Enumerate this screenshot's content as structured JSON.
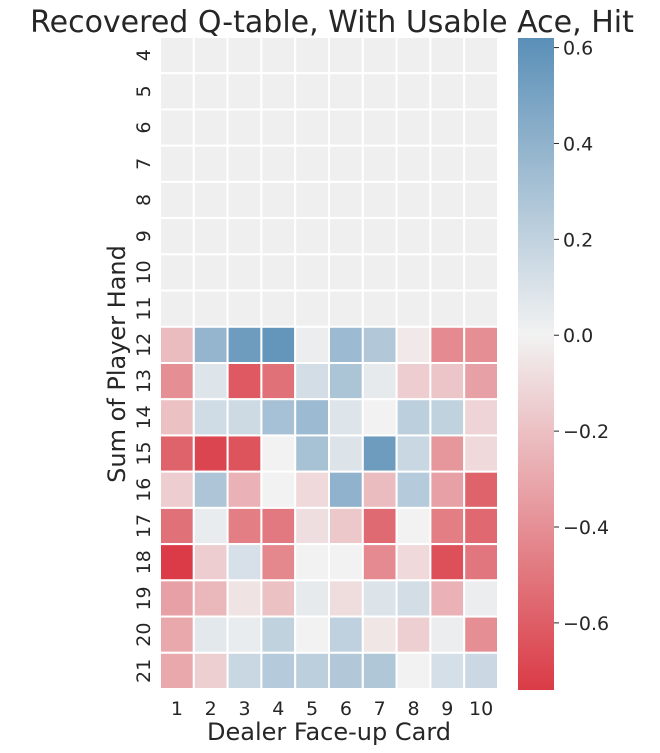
{
  "chart_data": {
    "type": "heatmap",
    "title": "Recovered Q-table, With Usable Ace, Hit",
    "xlabel": "Dealer Face-up Card",
    "ylabel": "Sum of Player Hand",
    "x_categories": [
      "1",
      "2",
      "3",
      "4",
      "5",
      "6",
      "7",
      "8",
      "9",
      "10"
    ],
    "y_categories": [
      "4",
      "5",
      "6",
      "7",
      "8",
      "9",
      "10",
      "11",
      "12",
      "13",
      "14",
      "15",
      "16",
      "17",
      "18",
      "19",
      "20",
      "21"
    ],
    "values": [
      [
        0,
        0,
        0,
        0,
        0,
        0,
        0,
        0,
        0,
        0
      ],
      [
        0,
        0,
        0,
        0,
        0,
        0,
        0,
        0,
        0,
        0
      ],
      [
        0,
        0,
        0,
        0,
        0,
        0,
        0,
        0,
        0,
        0
      ],
      [
        0,
        0,
        0,
        0,
        0,
        0,
        0,
        0,
        0,
        0
      ],
      [
        0,
        0,
        0,
        0,
        0,
        0,
        0,
        0,
        0,
        0
      ],
      [
        0,
        0,
        0,
        0,
        0,
        0,
        0,
        0,
        0,
        0
      ],
      [
        0,
        0,
        0,
        0,
        0,
        0,
        0,
        0,
        0,
        0
      ],
      [
        0,
        0,
        0,
        0,
        0,
        0,
        0,
        0,
        0,
        0
      ],
      [
        -0.22,
        0.38,
        0.54,
        0.58,
        0.03,
        0.35,
        0.26,
        -0.04,
        -0.42,
        -0.4
      ],
      [
        -0.4,
        0.08,
        -0.62,
        -0.52,
        0.13,
        0.29,
        0.05,
        -0.15,
        -0.18,
        -0.33
      ],
      [
        -0.2,
        0.14,
        0.15,
        0.31,
        0.35,
        0.08,
        0.0,
        0.22,
        0.2,
        -0.12
      ],
      [
        -0.58,
        -0.7,
        -0.64,
        0.0,
        0.3,
        0.09,
        0.54,
        0.17,
        -0.37,
        -0.1
      ],
      [
        -0.15,
        0.28,
        -0.26,
        0.0,
        -0.1,
        0.4,
        -0.22,
        0.25,
        -0.33,
        -0.58
      ],
      [
        -0.52,
        0.04,
        -0.47,
        -0.49,
        -0.08,
        -0.17,
        -0.55,
        0.0,
        -0.47,
        -0.56
      ],
      [
        -0.74,
        -0.15,
        0.11,
        -0.43,
        0.0,
        0.0,
        -0.42,
        -0.1,
        -0.66,
        -0.5
      ],
      [
        -0.33,
        -0.24,
        -0.06,
        -0.2,
        0.05,
        -0.09,
        0.09,
        0.13,
        -0.26,
        0.03
      ],
      [
        -0.3,
        0.06,
        0.04,
        0.2,
        0.0,
        0.21,
        -0.05,
        -0.14,
        0.03,
        -0.4
      ],
      [
        -0.3,
        -0.14,
        0.17,
        0.25,
        0.22,
        0.26,
        0.27,
        0.0,
        0.12,
        0.16
      ]
    ],
    "masked_rows": [
      "4",
      "5",
      "6",
      "7",
      "8",
      "9",
      "10",
      "11"
    ],
    "colorbar": {
      "range": [
        -0.74,
        0.62
      ],
      "ticks": [
        {
          "value": 0.6,
          "label": "0.6"
        },
        {
          "value": 0.4,
          "label": "0.4"
        },
        {
          "value": 0.2,
          "label": "0.2"
        },
        {
          "value": 0.0,
          "label": "0.0"
        },
        {
          "value": -0.2,
          "label": "−0.2"
        },
        {
          "value": -0.4,
          "label": "−0.4"
        },
        {
          "value": -0.6,
          "label": "−0.6"
        }
      ],
      "color_negative": "#da3b46",
      "color_zero": "#f2f2f2",
      "color_positive": "#5a8fb7"
    },
    "masked_color": "#efefef",
    "grid_color": "#ffffff"
  }
}
